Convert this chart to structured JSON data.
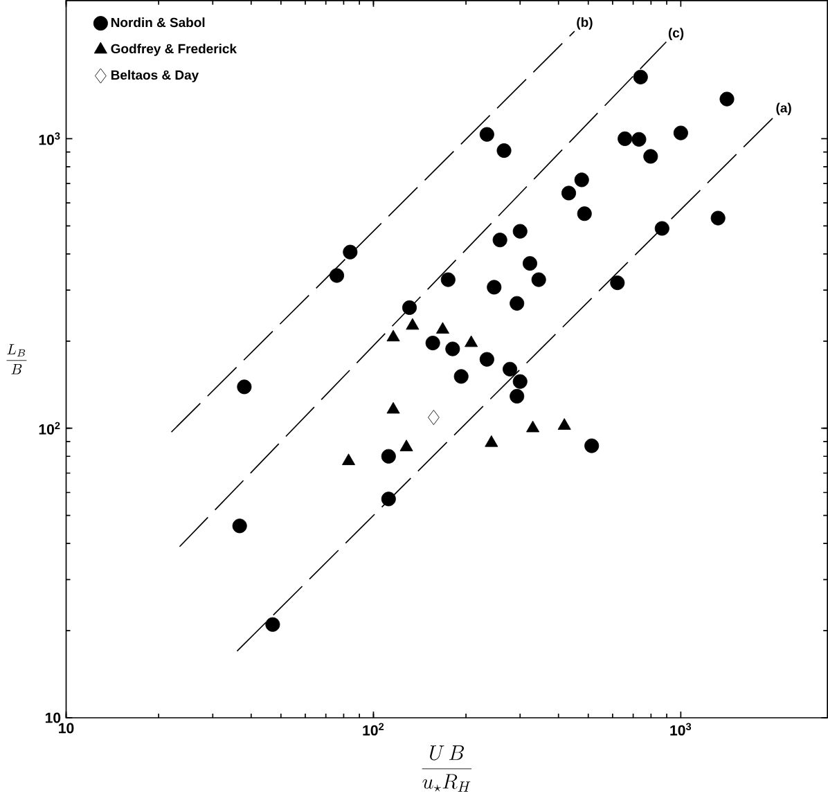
{
  "chart_data": {
    "type": "scatter",
    "log": "xy",
    "xlabel": "\\frac{U\\,B}{u_{\\star}R_{H}}",
    "ylabel": "\\frac{L_{B}}{B}",
    "xlim": [
      10,
      3000
    ],
    "ylim": [
      10,
      3000
    ],
    "xticks": [
      10,
      {
        "value": 100,
        "label": "10$^{2}$"
      },
      {
        "value": 1000,
        "label": "10$^{3}$"
      }
    ],
    "yticks": [
      10,
      {
        "value": 100,
        "label": "10$^{2}$"
      },
      {
        "value": 1000,
        "label": "10$^{3}$"
      }
    ],
    "legend": "top left",
    "grid": false,
    "series": [
      {
        "name": "Nordin & Sabol",
        "color": "#000000",
        "marker": "circle",
        "x": [
          36.7,
          47,
          112,
          112,
          38,
          76,
          84,
          234,
          266,
          740,
          1413,
          658,
          731,
          798,
          1000,
          476,
          432,
          486,
          1322,
          869,
          622,
          300,
          258,
          323,
          345,
          247,
          293,
          175,
          131,
          156,
          181,
          234,
          193,
          278,
          300,
          293,
          513
        ],
        "values": [
          46,
          21,
          80,
          57,
          139,
          337,
          406,
          1035,
          910,
          1633,
          1371,
          1000,
          995,
          869,
          1047,
          721,
          649,
          551,
          532,
          490,
          318,
          479,
          447,
          371,
          326,
          307,
          270,
          326,
          261,
          197,
          188,
          173,
          151,
          160,
          145,
          129,
          87
        ]
      },
      {
        "name": "Godfrey & Frederick",
        "color": "#000000",
        "marker": "triangle",
        "x": [
          83,
          116,
          134,
          168,
          208,
          116,
          242,
          330,
          418,
          128
        ],
        "values": [
          77,
          206,
          226,
          219,
          197,
          116,
          89,
          100,
          102,
          86
        ]
      },
      {
        "name": "Beltaos & Day",
        "color": "#000000",
        "marker": "diamond",
        "x": [
          157
        ],
        "values": [
          109
        ]
      },
      {
        "type": "line",
        "color": "#000000",
        "line_style": "dashed",
        "marker": "none",
        "x": [
          36,
          2010
        ],
        "values": [
          17,
          1190
        ]
      },
      {
        "type": "line",
        "color": "#000000",
        "line_style": "dashed",
        "marker": "none",
        "x": [
          22,
          451
        ],
        "values": [
          97,
          2350
        ]
      },
      {
        "type": "line",
        "color": "#000000",
        "line_style": "dashed",
        "marker": "none",
        "x": [
          23.4,
          897
        ],
        "values": [
          39,
          2160
        ]
      }
    ],
    "annotations": [
      {
        "text": "(a)",
        "x": 2010,
        "y": 1190
      },
      {
        "text": "(b)",
        "x": 451,
        "y": 2350
      },
      {
        "text": "(c)",
        "x": 897,
        "y": 2160
      }
    ]
  }
}
